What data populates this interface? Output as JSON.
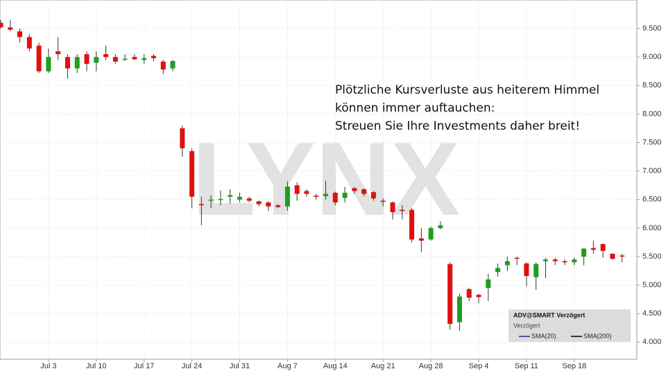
{
  "chart_data": {
    "type": "candlestick",
    "annotation": [
      "Plötzliche Kursverluste aus heiterem Himmel",
      "können immer auftauchen:",
      "Streuen Sie Ihre Investments daher breit!"
    ],
    "watermark": "LYNX",
    "categories": [
      null,
      null,
      null,
      null,
      null,
      "Jul 3",
      null,
      null,
      null,
      null,
      "Jul 10",
      null,
      null,
      null,
      null,
      "Jul 17",
      null,
      null,
      null,
      null,
      "Jul 24",
      null,
      null,
      null,
      null,
      "Jul 31",
      null,
      null,
      null,
      null,
      "Aug 7",
      null,
      null,
      null,
      null,
      "Aug 14",
      null,
      null,
      null,
      null,
      "Aug 21",
      null,
      null,
      null,
      null,
      "Aug 28",
      null,
      null,
      null,
      null,
      "Sep 4",
      null,
      null,
      null,
      null,
      "Sep 11",
      null,
      null,
      null,
      null,
      "Sep 18",
      null,
      null,
      null,
      null,
      null
    ],
    "open": [
      9600,
      9520,
      9450,
      9350,
      9200,
      8750,
      9100,
      9000,
      8800,
      9050,
      8900,
      9050,
      9000,
      8950,
      9000,
      8950,
      9020,
      8920,
      8800,
      7750,
      7350,
      6420,
      6480,
      6500,
      6550,
      6500,
      6520,
      6470,
      6450,
      6400,
      6380,
      6750,
      6650,
      6570,
      6560,
      6620,
      6530,
      6700,
      6680,
      6630,
      6480,
      6450,
      6320,
      6320,
      5820,
      5800,
      6000,
      5370,
      4350,
      4930,
      4830,
      4950,
      5230,
      5350,
      5480,
      5380,
      5140,
      5420,
      5450,
      5420,
      5400,
      5500,
      5650,
      5720,
      5550,
      5520
    ],
    "high": [
      9650,
      9650,
      9500,
      9400,
      9250,
      9150,
      9350,
      9050,
      9050,
      9100,
      9100,
      9200,
      9050,
      9050,
      9050,
      9050,
      9050,
      8950,
      8950,
      7800,
      7400,
      6550,
      6570,
      6660,
      6680,
      6620,
      6550,
      6480,
      6470,
      6420,
      6820,
      6800,
      6680,
      6600,
      6830,
      6640,
      6720,
      6720,
      6700,
      6650,
      6520,
      6470,
      6400,
      6350,
      6000,
      6030,
      6120,
      5400,
      4850,
      4950,
      4850,
      5200,
      5380,
      5500,
      5500,
      5400,
      5400,
      5480,
      5480,
      5450,
      5480,
      5650,
      5780,
      5730,
      5560,
      5550
    ],
    "low": [
      9500,
      9450,
      9250,
      9100,
      8720,
      8720,
      8950,
      8620,
      8720,
      8750,
      8750,
      8950,
      8880,
      8930,
      8950,
      8880,
      8930,
      8700,
      8750,
      7250,
      6350,
      6050,
      6350,
      6400,
      6430,
      6450,
      6450,
      6380,
      6300,
      6350,
      6300,
      6480,
      6550,
      6500,
      6500,
      6400,
      6450,
      6600,
      6560,
      6480,
      6380,
      6150,
      6150,
      5750,
      5580,
      5780,
      5980,
      4220,
      4200,
      4720,
      4680,
      4720,
      5150,
      5250,
      5350,
      4980,
      4920,
      5120,
      5350,
      5350,
      5350,
      5350,
      5550,
      5480,
      5450,
      5400
    ],
    "close": [
      9520,
      9480,
      9350,
      9150,
      8750,
      9000,
      9050,
      8800,
      9000,
      8880,
      9000,
      9000,
      8920,
      8970,
      8960,
      8980,
      8980,
      8780,
      8930,
      7400,
      6550,
      6400,
      6500,
      6510,
      6580,
      6550,
      6480,
      6420,
      6380,
      6370,
      6730,
      6600,
      6600,
      6550,
      6600,
      6450,
      6620,
      6650,
      6600,
      6520,
      6460,
      6280,
      6300,
      5800,
      5780,
      6000,
      6050,
      4320,
      4800,
      4780,
      4790,
      5100,
      5300,
      5420,
      5470,
      5160,
      5370,
      5450,
      5420,
      5400,
      5450,
      5640,
      5620,
      5600,
      5460,
      5510
    ],
    "up_color": "#1e9e1e",
    "down_color": "#e01010",
    "ylim": [
      3700,
      10000
    ],
    "yticks": [
      {
        "value": 4000,
        "label": "4.000"
      },
      {
        "value": 4500,
        "label": "4.500"
      },
      {
        "value": 5000,
        "label": "5.000"
      },
      {
        "value": 5500,
        "label": "5.500"
      },
      {
        "value": 6000,
        "label": "6.000"
      },
      {
        "value": 6500,
        "label": "6.500"
      },
      {
        "value": 7000,
        "label": "7.000"
      },
      {
        "value": 7500,
        "label": "7.500"
      },
      {
        "value": 8000,
        "label": "8.000"
      },
      {
        "value": 8500,
        "label": "8.500"
      },
      {
        "value": 9000,
        "label": "9.000"
      },
      {
        "value": 9500,
        "label": "9.500"
      }
    ],
    "grid": true,
    "info_box": {
      "title": "ADV@SMART Verzögert",
      "subtitle": "Verzögert",
      "items": [
        {
          "name": "SMA(20)",
          "color": "#1a2a9a"
        },
        {
          "name": "SMA(200)",
          "color": "#000000"
        }
      ]
    }
  }
}
